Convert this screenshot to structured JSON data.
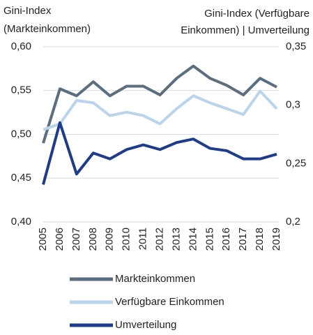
{
  "chart_data": {
    "type": "line",
    "ylabel": [
      "Gini-Index",
      "(Markteinkommen)"
    ],
    "y2label": [
      "Gini-Index (Verfügbare",
      "Einkommen) | Umverteilung"
    ],
    "categories": [
      "2005",
      "2006",
      "2007",
      "2008",
      "2009",
      "2010",
      "2011",
      "2012",
      "2013",
      "2014",
      "2015",
      "2016",
      "2017",
      "2018",
      "2019"
    ],
    "series": [
      {
        "name": "Markteinkommen",
        "color": "#5b6e80",
        "values": [
          0.49,
          0.552,
          0.544,
          0.56,
          0.544,
          0.555,
          0.555,
          0.545,
          0.564,
          0.578,
          0.564,
          0.556,
          0.545,
          0.564,
          0.554
        ]
      },
      {
        "name": "Verfügbare Einkommen",
        "color": "#bad4eb",
        "axis": "y2",
        "values": [
          0.279,
          0.284,
          0.304,
          0.302,
          0.291,
          0.294,
          0.291,
          0.284,
          0.297,
          0.308,
          0.302,
          0.297,
          0.292,
          0.312,
          0.297
        ]
      },
      {
        "name": "Umverteilung",
        "color": "#1f3c8c",
        "axis": "y2",
        "values": [
          0.232,
          0.285,
          0.241,
          0.259,
          0.254,
          0.262,
          0.266,
          0.262,
          0.268,
          0.271,
          0.263,
          0.261,
          0.254,
          0.254,
          0.258
        ]
      }
    ],
    "ylim": [
      0.4,
      0.6
    ],
    "yticks": [
      {
        "value": 0.4,
        "label": "0,40"
      },
      {
        "value": 0.45,
        "label": "0,45"
      },
      {
        "value": 0.5,
        "label": "0,50"
      },
      {
        "value": 0.55,
        "label": "0,55"
      },
      {
        "value": 0.6,
        "label": "0,60"
      }
    ],
    "y2lim": [
      0.2,
      0.35
    ],
    "y2ticks": [
      {
        "value": 0.2,
        "label": "0,2"
      },
      {
        "value": 0.25,
        "label": "0,25"
      },
      {
        "value": 0.3,
        "label": "0,3"
      },
      {
        "value": 0.35,
        "label": "0,35"
      }
    ],
    "grid": true
  }
}
